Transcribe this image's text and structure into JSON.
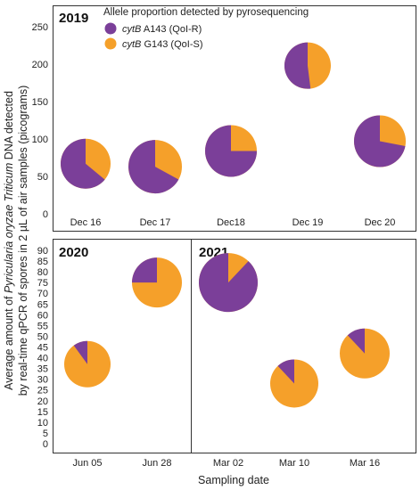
{
  "ylabel_line1_parts": [
    "Average amount of ",
    "Pyricularia oryzae Triticum",
    " DNA detected"
  ],
  "ylabel_line2": "by real-time qPCR of spores  in 2 µL of air samples (picograms)",
  "xlabel": "Sampling date",
  "legend": {
    "title": "Allele proportion detected by pyrosequencing",
    "items": [
      {
        "gene": "cytB",
        "label": " A143  (QoI-R)",
        "color": "#7B3F99"
      },
      {
        "gene": "cytB",
        "label": " G143  (QoI-S)",
        "color": "#F5A02A"
      }
    ]
  },
  "chart_data": [
    {
      "type": "pie-scatter",
      "panel": "2019",
      "ylim": [
        0,
        250
      ],
      "yticks": [
        0,
        50,
        100,
        150,
        200,
        250
      ],
      "categories": [
        "Dec 16",
        "Dec 17",
        "Dec18",
        "Dec 19",
        "Dec 20"
      ],
      "values": [
        67,
        63,
        84,
        198,
        97
      ],
      "fraction_A143": [
        0.64,
        0.67,
        0.75,
        0.52,
        0.72
      ],
      "fraction_G143": [
        0.36,
        0.33,
        0.25,
        0.48,
        0.28
      ]
    },
    {
      "type": "pie-scatter",
      "panel": "2020",
      "ylim": [
        0,
        90
      ],
      "yticks": [
        0,
        5,
        10,
        15,
        20,
        25,
        30,
        35,
        40,
        45,
        50,
        55,
        60,
        65,
        70,
        75,
        80,
        85,
        90
      ],
      "categories": [
        "Jun 05",
        "Jun 28"
      ],
      "values": [
        37,
        75
      ],
      "fraction_A143": [
        0.1,
        0.25
      ],
      "fraction_G143": [
        0.9,
        0.75
      ]
    },
    {
      "type": "pie-scatter",
      "panel": "2021",
      "ylim": [
        0,
        90
      ],
      "categories": [
        "Mar 02",
        "Mar 10",
        "Mar 16"
      ],
      "values": [
        75,
        28,
        42
      ],
      "fraction_A143": [
        0.88,
        0.12,
        0.12
      ],
      "fraction_G143": [
        0.12,
        0.88,
        0.88
      ]
    }
  ]
}
